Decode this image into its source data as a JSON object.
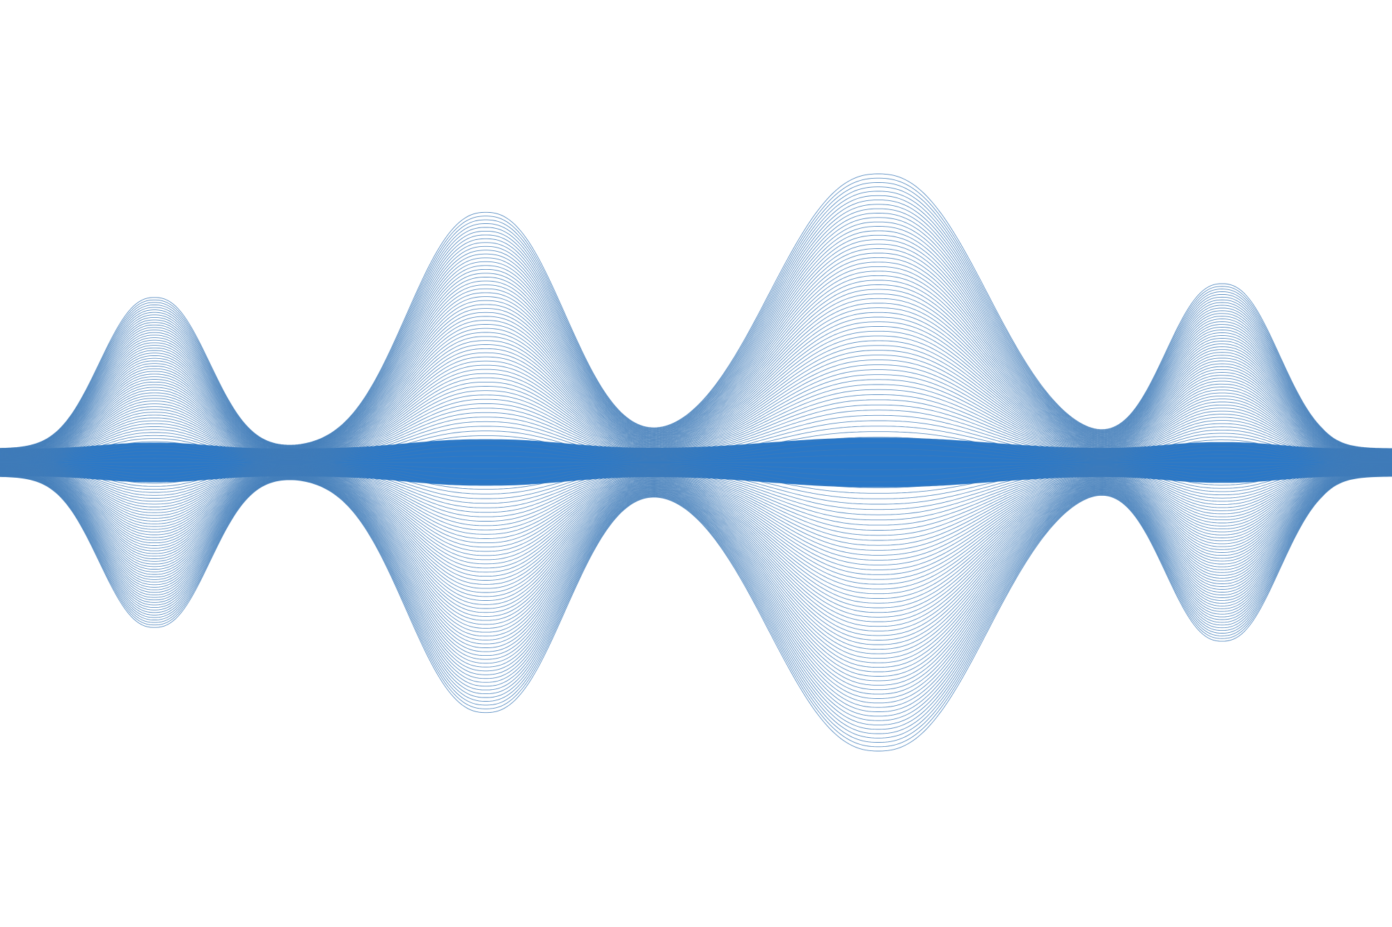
{
  "artwork": {
    "subject": "abstract-sound-wave-line-art",
    "background_color": "#ffffff",
    "fill_color": "#2a78c8",
    "line_color": "#3f7bb8",
    "line_count": 120,
    "pulses": [
      {
        "name": "pulse-1",
        "relative_amplitude": 0.55
      },
      {
        "name": "pulse-2",
        "relative_amplitude": 0.86
      },
      {
        "name": "pulse-3",
        "relative_amplitude": 1.0
      },
      {
        "name": "pulse-4",
        "relative_amplitude": 0.6
      }
    ]
  }
}
